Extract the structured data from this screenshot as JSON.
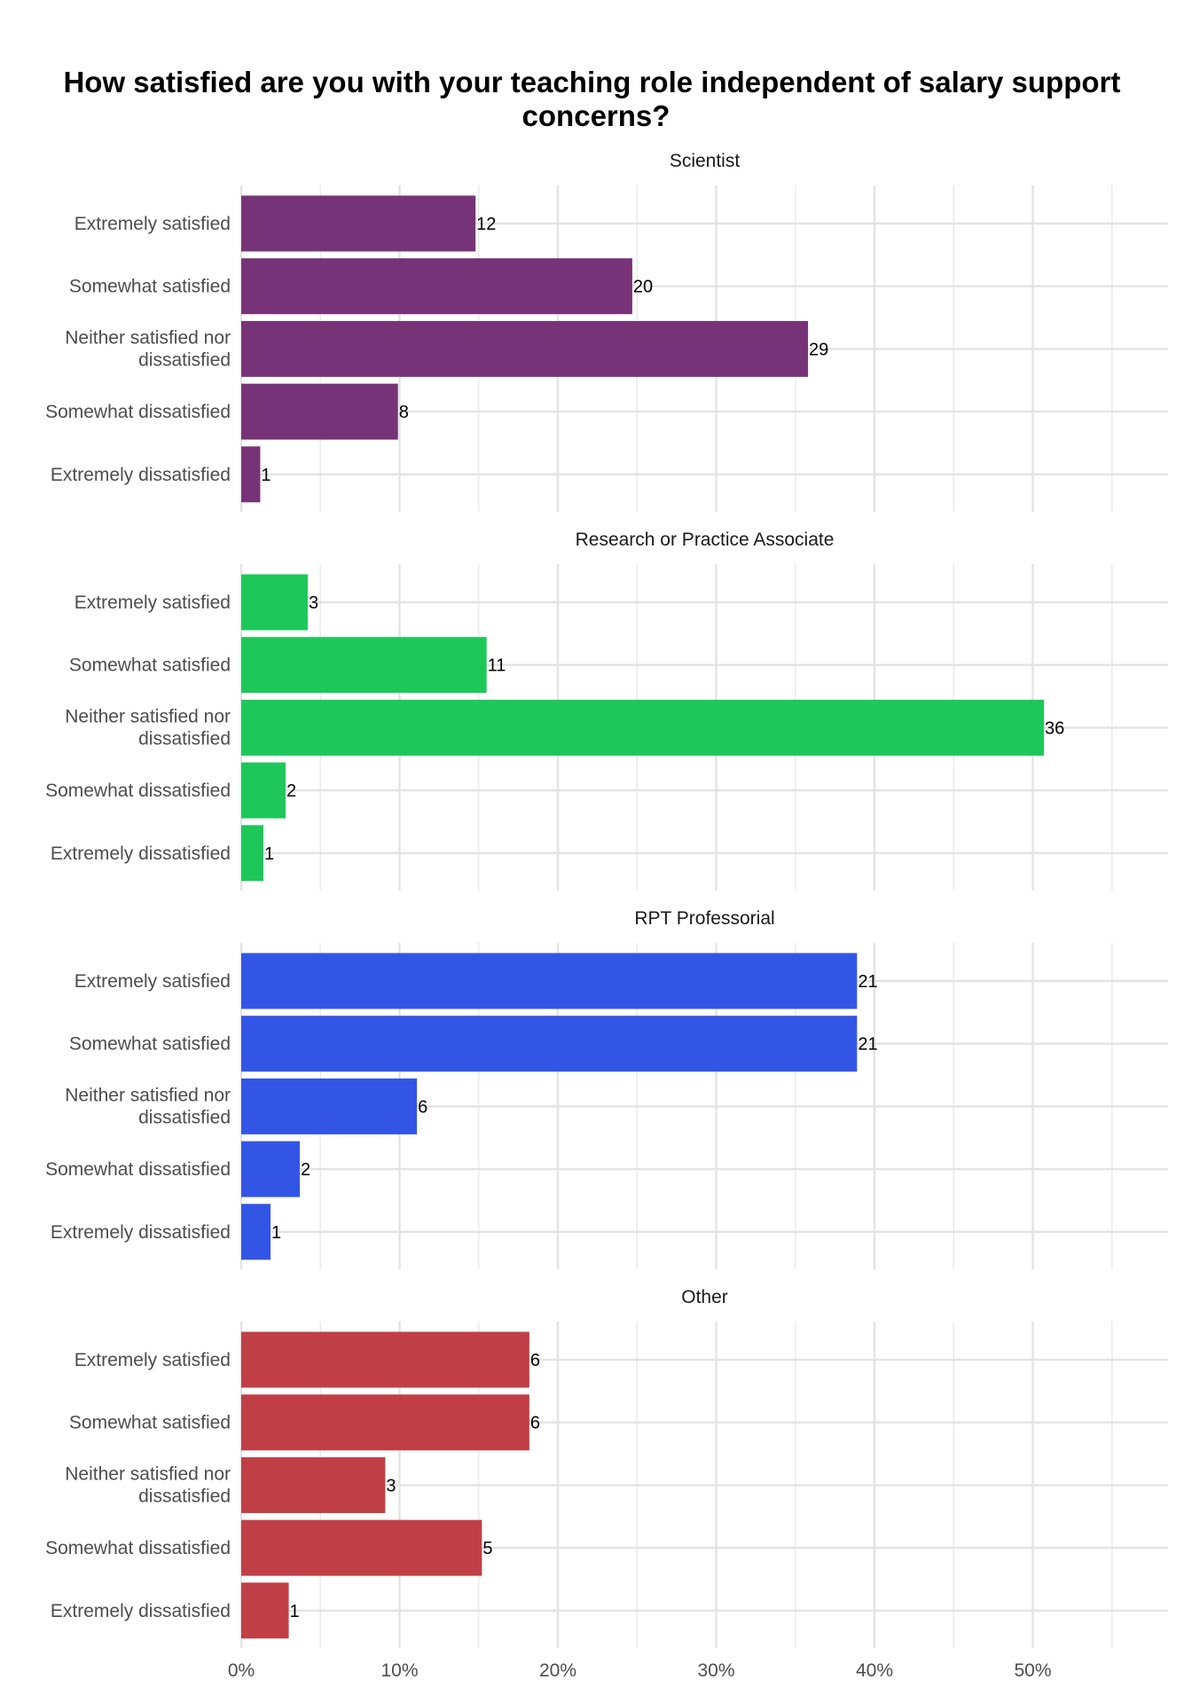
{
  "chart_data": {
    "type": "bar",
    "orientation": "horizontal",
    "title_lines": [
      "How satisfied are you with your teaching role independent of salary support",
      "concerns?"
    ],
    "categories": [
      [
        "Extremely satisfied"
      ],
      [
        "Somewhat satisfied"
      ],
      [
        "Neither satisfied nor",
        "dissatisfied"
      ],
      [
        "Somewhat dissatisfied"
      ],
      [
        "Extremely dissatisfied"
      ]
    ],
    "x_ticks": [
      "0%",
      "10%",
      "20%",
      "30%",
      "40%",
      "50%"
    ],
    "xlim": [
      0,
      58
    ],
    "grid": true,
    "facets": [
      {
        "name": "Scientist",
        "color": "#773377",
        "counts": [
          12,
          20,
          29,
          8,
          1
        ],
        "percent": [
          14.8,
          24.7,
          35.8,
          9.9,
          1.2
        ]
      },
      {
        "name": "Research or Practice Associate",
        "color": "#1ec75a",
        "counts": [
          3,
          11,
          36,
          2,
          1
        ],
        "percent": [
          4.2,
          15.5,
          50.7,
          2.8,
          1.4
        ]
      },
      {
        "name": "RPT Professorial",
        "color": "#3355e6",
        "counts": [
          21,
          21,
          6,
          2,
          1
        ],
        "percent": [
          38.9,
          38.9,
          11.1,
          3.7,
          1.85
        ]
      },
      {
        "name": "Other",
        "color": "#c03f46",
        "counts": [
          6,
          6,
          3,
          5,
          1
        ],
        "percent": [
          18.2,
          18.2,
          9.1,
          15.2,
          3.0
        ]
      }
    ]
  }
}
